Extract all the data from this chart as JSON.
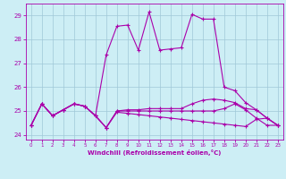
{
  "xlabel": "Windchill (Refroidissement éolien,°C)",
  "bg_color": "#cdeef5",
  "grid_color": "#a0c8d8",
  "line_color": "#aa00aa",
  "ylim": [
    23.8,
    29.5
  ],
  "yticks": [
    24,
    25,
    26,
    27,
    28,
    29
  ],
  "xlim": [
    -0.5,
    23.5
  ],
  "series_high": [
    24.4,
    25.3,
    24.8,
    25.05,
    25.3,
    25.2,
    24.8,
    27.35,
    28.55,
    28.6,
    27.55,
    29.15,
    27.55,
    27.6,
    27.65,
    29.05,
    28.85,
    28.85,
    26.0,
    25.85,
    25.35,
    25.05,
    24.7,
    24.4
  ],
  "series_flat1": [
    24.4,
    25.3,
    24.8,
    25.05,
    25.3,
    25.2,
    24.8,
    24.3,
    25.0,
    25.0,
    25.0,
    25.0,
    25.0,
    25.0,
    25.0,
    25.0,
    25.0,
    25.0,
    25.1,
    25.3,
    25.05,
    24.7,
    24.4,
    24.4
  ],
  "series_flat2": [
    24.4,
    25.3,
    24.8,
    25.05,
    25.3,
    25.2,
    24.8,
    24.3,
    25.0,
    25.05,
    25.05,
    25.1,
    25.1,
    25.1,
    25.1,
    25.3,
    25.45,
    25.5,
    25.45,
    25.35,
    25.1,
    25.05,
    24.7,
    24.4
  ],
  "series_down": [
    24.4,
    25.3,
    24.8,
    25.05,
    25.3,
    25.2,
    24.8,
    24.3,
    24.95,
    24.9,
    24.85,
    24.8,
    24.75,
    24.7,
    24.65,
    24.6,
    24.55,
    24.5,
    24.45,
    24.4,
    24.35,
    24.65,
    24.7,
    24.4
  ]
}
